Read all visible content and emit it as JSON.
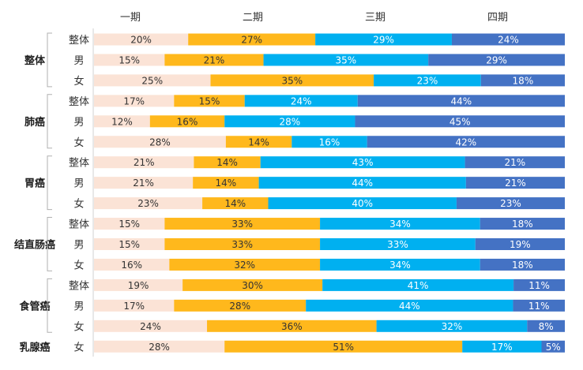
{
  "chart_data": {
    "type": "bar",
    "orientation": "horizontal-stacked-100",
    "series": [
      {
        "name": "一期",
        "color": "#FBE3D6"
      },
      {
        "name": "二期",
        "color": "#FFB81C"
      },
      {
        "name": "三期",
        "color": "#00B0F0"
      },
      {
        "name": "四期",
        "color": "#4472C4"
      }
    ],
    "groups": [
      {
        "name": "整体",
        "rows": [
          {
            "label": "整体",
            "values": [
              20,
              27,
              29,
              24
            ]
          },
          {
            "label": "男",
            "values": [
              15,
              21,
              35,
              29
            ]
          },
          {
            "label": "女",
            "values": [
              25,
              35,
              23,
              18
            ]
          }
        ]
      },
      {
        "name": "肺癌",
        "rows": [
          {
            "label": "整体",
            "values": [
              17,
              15,
              24,
              44
            ]
          },
          {
            "label": "男",
            "values": [
              12,
              16,
              28,
              45
            ]
          },
          {
            "label": "女",
            "values": [
              28,
              14,
              16,
              42
            ]
          }
        ]
      },
      {
        "name": "胃癌",
        "rows": [
          {
            "label": "整体",
            "values": [
              21,
              14,
              43,
              21
            ]
          },
          {
            "label": "男",
            "values": [
              21,
              14,
              44,
              21
            ]
          },
          {
            "label": "女",
            "values": [
              23,
              14,
              40,
              23
            ]
          }
        ]
      },
      {
        "name": "结直肠癌",
        "rows": [
          {
            "label": "整体",
            "values": [
              15,
              33,
              34,
              18
            ]
          },
          {
            "label": "男",
            "values": [
              15,
              33,
              33,
              19
            ]
          },
          {
            "label": "女",
            "values": [
              16,
              32,
              34,
              18
            ]
          }
        ]
      },
      {
        "name": "食管癌",
        "rows": [
          {
            "label": "整体",
            "values": [
              19,
              30,
              41,
              11
            ]
          },
          {
            "label": "男",
            "values": [
              17,
              28,
              44,
              11
            ]
          },
          {
            "label": "女",
            "values": [
              24,
              36,
              32,
              8
            ]
          }
        ]
      },
      {
        "name": "乳腺癌",
        "rows": [
          {
            "label": "女",
            "values": [
              28,
              51,
              17,
              5
            ]
          }
        ]
      }
    ],
    "value_suffix": "%",
    "xlim": [
      0,
      100
    ],
    "legend_position": "top",
    "grid": false
  }
}
